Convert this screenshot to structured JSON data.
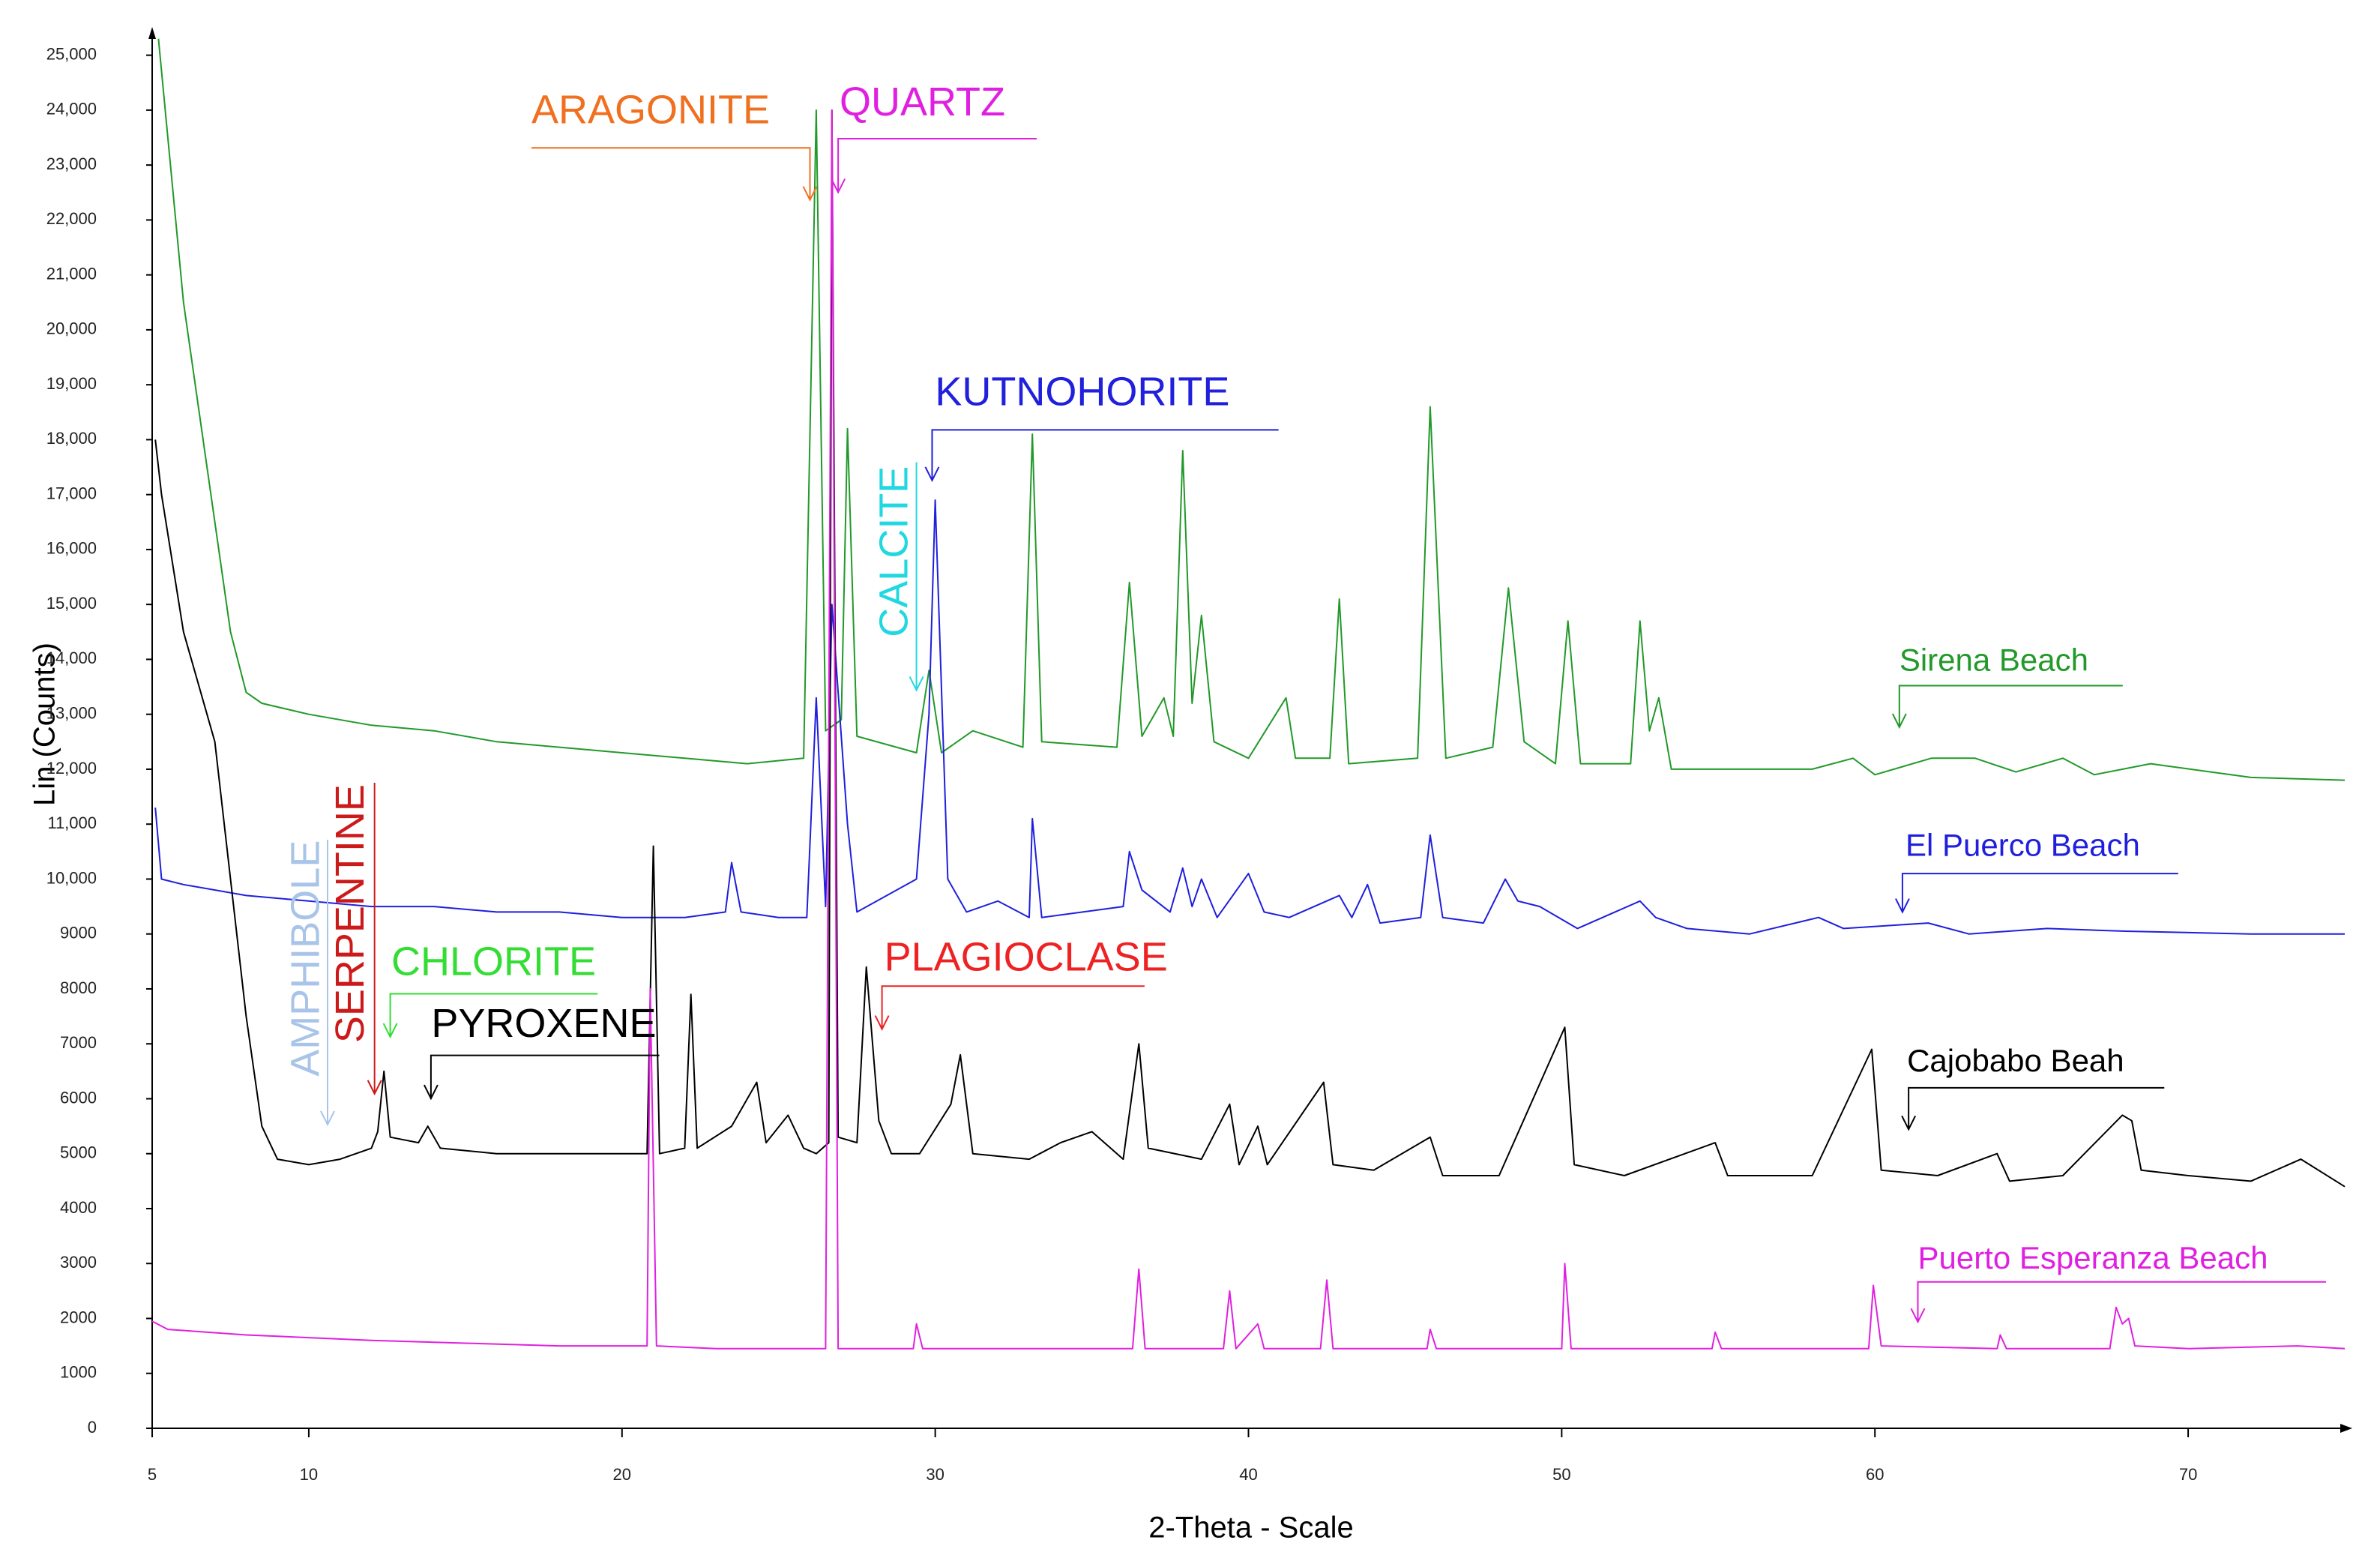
{
  "chart_data": {
    "type": "line",
    "x_label": "2-Theta - Scale",
    "y_label": "Lin (Counts)",
    "xlim": [
      5,
      75
    ],
    "ylim": [
      0,
      25500
    ],
    "xticks": [
      5,
      10,
      20,
      30,
      40,
      50,
      60,
      70
    ],
    "yticks": [
      0,
      1000,
      2000,
      3000,
      4000,
      5000,
      6000,
      7000,
      8000,
      9000,
      {
        "value": 10000,
        "label": "10,000"
      },
      {
        "value": 11000,
        "label": "11,000"
      },
      {
        "value": 12000,
        "label": "12,000"
      },
      {
        "value": 13000,
        "label": "13,000"
      },
      {
        "value": 14000,
        "label": "14,000"
      },
      {
        "value": 15000,
        "label": "15,000"
      },
      {
        "value": 16000,
        "label": "16,000"
      },
      {
        "value": 17000,
        "label": "17,000"
      },
      {
        "value": 18000,
        "label": "18,000"
      },
      {
        "value": 19000,
        "label": "19,000"
      },
      {
        "value": 20000,
        "label": "20,000"
      },
      {
        "value": 21000,
        "label": "21,000"
      },
      {
        "value": 22000,
        "label": "22,000"
      },
      {
        "value": 23000,
        "label": "23,000"
      },
      {
        "value": 24000,
        "label": "24,000"
      },
      {
        "value": 25000,
        "label": "25,000"
      }
    ],
    "grid": false,
    "series": [
      {
        "name": "Sirena Beach",
        "color": "#22992a",
        "x": [
          5.2,
          5.5,
          6,
          6.5,
          7,
          7.5,
          8,
          8.5,
          10,
          12,
          14,
          16,
          18,
          20,
          22,
          24,
          25.8,
          26.2,
          26.5,
          27,
          27.2,
          27.5,
          29.4,
          29.8,
          30.2,
          31.2,
          32.8,
          33.1,
          33.4,
          35.8,
          36.2,
          36.6,
          37.3,
          37.6,
          37.9,
          38.2,
          38.5,
          38.9,
          40,
          41.2,
          41.5,
          42.6,
          42.9,
          43.2,
          45.4,
          45.8,
          46.3,
          47.8,
          48.3,
          48.8,
          49.8,
          50.2,
          50.6,
          52.2,
          52.5,
          52.8,
          53.1,
          53.5,
          55,
          58,
          59.3,
          60,
          61.8,
          63.2,
          64.5,
          66,
          67,
          68.8,
          72,
          75
        ],
        "values": [
          25300,
          23500,
          20500,
          18500,
          16500,
          14500,
          13400,
          13200,
          13000,
          12800,
          12700,
          12500,
          12400,
          12300,
          12200,
          12100,
          12200,
          24000,
          12700,
          12900,
          18200,
          12600,
          12300,
          13800,
          12300,
          12700,
          12400,
          18100,
          12500,
          12400,
          15400,
          12600,
          13300,
          12600,
          17800,
          13200,
          14800,
          12500,
          12200,
          13300,
          12200,
          12200,
          15100,
          12100,
          12200,
          18600,
          12200,
          12400,
          15300,
          12500,
          12100,
          14700,
          12100,
          12100,
          14700,
          12700,
          13300,
          12000,
          12000,
          12000,
          12200,
          11900,
          12200,
          12200,
          11950,
          12200,
          11900,
          12100,
          11850,
          11800
        ]
      },
      {
        "name": "El Puerco Beach",
        "color": "#1f1fdd",
        "x": [
          5.1,
          5.3,
          6,
          8,
          10,
          12,
          14,
          16,
          18,
          20,
          22,
          23.3,
          23.5,
          23.8,
          25,
          25.9,
          26.2,
          26.5,
          26.7,
          27.2,
          27.5,
          29.4,
          29.8,
          30,
          30.4,
          31,
          32,
          33,
          33.1,
          33.4,
          36,
          36.2,
          36.6,
          37.5,
          37.9,
          38.2,
          38.5,
          39,
          40,
          40.5,
          41.3,
          42.9,
          43.3,
          43.8,
          44.2,
          45.5,
          45.8,
          46.2,
          47.5,
          48.2,
          48.6,
          49.3,
          50.5,
          52.5,
          53,
          54,
          56,
          58.2,
          59,
          61.7,
          63,
          65.5,
          68,
          72,
          75
        ],
        "values": [
          11300,
          10000,
          9900,
          9700,
          9600,
          9500,
          9500,
          9400,
          9400,
          9300,
          9300,
          9400,
          10300,
          9400,
          9300,
          9300,
          13300,
          9500,
          15000,
          11000,
          9400,
          10000,
          13000,
          16900,
          10000,
          9400,
          9600,
          9300,
          11100,
          9300,
          9500,
          10500,
          9800,
          9400,
          10200,
          9500,
          10000,
          9300,
          10100,
          9400,
          9300,
          9700,
          9300,
          9900,
          9200,
          9300,
          10800,
          9300,
          9200,
          10000,
          9600,
          9500,
          9100,
          9600,
          9300,
          9100,
          9000,
          9300,
          9100,
          9200,
          9000,
          9100,
          9050,
          9000,
          9000
        ]
      },
      {
        "name": "Cajobabo Beah",
        "color": "#000000",
        "x": [
          5.1,
          5.3,
          6,
          7,
          7.5,
          8,
          8.5,
          9,
          10,
          11,
          12,
          12.2,
          12.4,
          12.6,
          13.5,
          13.8,
          14.2,
          16,
          18,
          20,
          20.8,
          21,
          21.2,
          22,
          22.2,
          22.4,
          23.5,
          24.3,
          24.6,
          25.3,
          25.8,
          26.2,
          26.6,
          26.7,
          26.9,
          27.5,
          27.8,
          28.2,
          28.6,
          29.5,
          30.5,
          30.8,
          31.2,
          33,
          34,
          35,
          36,
          36.5,
          36.8,
          38.5,
          39.4,
          39.7,
          40.3,
          40.6,
          42.4,
          42.7,
          44,
          45.8,
          46.2,
          48,
          50.1,
          50.4,
          52,
          54.9,
          55.3,
          58,
          59.9,
          60.2,
          62,
          63.9,
          64.3,
          66,
          67.9,
          68.2,
          68.5,
          70,
          72,
          73.6,
          75
        ],
        "values": [
          18000,
          17000,
          14500,
          12500,
          10000,
          7500,
          5500,
          4900,
          4800,
          4900,
          5100,
          5400,
          6500,
          5300,
          5200,
          5500,
          5100,
          5000,
          5000,
          5000,
          5000,
          10600,
          5000,
          5100,
          7900,
          5100,
          5500,
          6300,
          5200,
          5700,
          5100,
          5000,
          5200,
          24000,
          5300,
          5200,
          8400,
          5600,
          5000,
          5000,
          5900,
          6800,
          5000,
          4900,
          5200,
          5400,
          4900,
          7000,
          5100,
          4900,
          5900,
          4800,
          5500,
          4800,
          6300,
          4800,
          4700,
          5300,
          4600,
          4600,
          7300,
          4800,
          4600,
          5200,
          4600,
          4600,
          6900,
          4700,
          4600,
          5000,
          4500,
          4600,
          5700,
          5600,
          4700,
          4600,
          4500,
          4900,
          4400
        ]
      },
      {
        "name": "Puerto Esperanza Beach",
        "color": "#e020e0",
        "x": [
          5,
          5.5,
          8,
          10,
          12,
          15,
          18,
          20,
          20.8,
          20.9,
          21.1,
          23,
          26.5,
          26.7,
          26.9,
          29.3,
          29.4,
          29.6,
          36.3,
          36.5,
          36.7,
          39.2,
          39.4,
          39.6,
          40.3,
          40.5,
          42.3,
          42.5,
          42.7,
          45.7,
          45.8,
          46,
          50,
          50.1,
          50.3,
          54.8,
          54.9,
          55.1,
          59.8,
          59.95,
          60.2,
          63.9,
          64,
          64.2,
          67.5,
          67.7,
          67.9,
          68.1,
          68.3,
          70,
          73.5,
          75
        ],
        "values": [
          1950,
          1800,
          1700,
          1650,
          1600,
          1550,
          1500,
          1500,
          1500,
          8000,
          1500,
          1450,
          1450,
          24000,
          1450,
          1450,
          1900,
          1450,
          1450,
          2900,
          1450,
          1450,
          2500,
          1450,
          1900,
          1450,
          1450,
          2700,
          1450,
          1450,
          1800,
          1450,
          1450,
          3000,
          1450,
          1450,
          1750,
          1450,
          1450,
          2600,
          1500,
          1450,
          1700,
          1450,
          1450,
          2200,
          1900,
          2000,
          1500,
          1450,
          1500,
          1450
        ]
      }
    ],
    "annotations": [
      {
        "text": "ARAGONITE",
        "color": "#f07020",
        "x": 26,
        "y": 22365
      },
      {
        "text": "QUARTZ",
        "color": "#e020e0",
        "x": 26.9,
        "y": 22503
      },
      {
        "text": "KUTNOHORITE",
        "color": "#2020dd",
        "x": 29.9,
        "y": 17258
      },
      {
        "text": "CALCITE",
        "color": "#22d8e0",
        "x": 29.4,
        "y": 13440
      },
      {
        "text": "AMPHIBOLE",
        "color": "#a8c4e8",
        "x": 10.6,
        "y": 5530
      },
      {
        "text": "SERPENTINE",
        "color": "#cc1a1a",
        "x": 12.1,
        "y": 6090
      },
      {
        "text": "CHLORITE",
        "color": "#33dd33",
        "x": 12.6,
        "y": 7127
      },
      {
        "text": "PYROXENE",
        "color": "#000000",
        "x": 13.9,
        "y": 6005
      },
      {
        "text": "PLAGIOCLASE",
        "color": "#ee2222",
        "x": 28.3,
        "y": 7268
      }
    ]
  }
}
